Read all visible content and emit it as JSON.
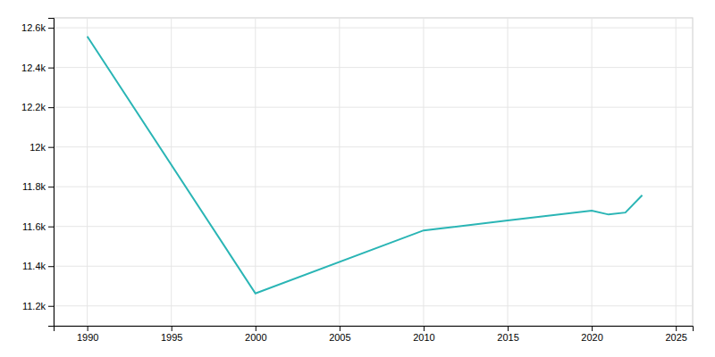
{
  "chart_data": {
    "type": "line",
    "x": [
      1990,
      2000,
      2010,
      2015,
      2020,
      2021,
      2022,
      2023
    ],
    "values": [
      12557,
      11263,
      11580,
      11630,
      11680,
      11660,
      11670,
      11757
    ],
    "color": "#2ab5b5",
    "xlim": [
      1988,
      2026
    ],
    "ylim": [
      11100,
      12650
    ],
    "xticks": [
      1990,
      1995,
      2000,
      2005,
      2010,
      2015,
      2020,
      2025
    ],
    "yticks": [
      {
        "value": 11200,
        "label": "11.2k"
      },
      {
        "value": 11400,
        "label": "11.4k"
      },
      {
        "value": 11600,
        "label": "11.6k"
      },
      {
        "value": 11800,
        "label": "11.8k"
      },
      {
        "value": 12000,
        "label": "12k"
      },
      {
        "value": 12200,
        "label": "12.2k"
      },
      {
        "value": 12400,
        "label": "12.4k"
      },
      {
        "value": 12600,
        "label": "12.6k"
      }
    ],
    "grid": true
  }
}
